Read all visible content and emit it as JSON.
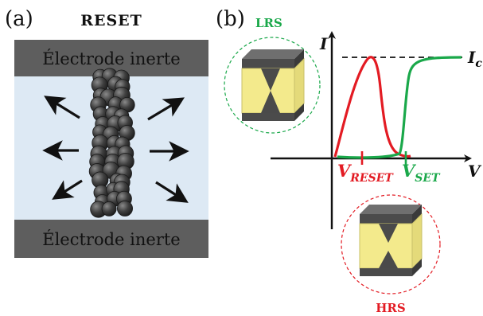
{
  "panel_a": {
    "label": "(a)",
    "title": "RESET",
    "top_electrode": "Électrode inerte",
    "bottom_electrode": "Électrode inerte",
    "colors": {
      "electrode": "#5e5e5e",
      "medium": "#dde9f4",
      "particle": "#3a3a3a"
    }
  },
  "panel_b": {
    "label": "(b)",
    "axis_i": "I",
    "axis_v": "V",
    "compliance_label": "I",
    "compliance_sub": "c",
    "v_reset_main": "V",
    "v_reset_sub": "RESET",
    "v_set_main": "V",
    "v_set_sub": "SET",
    "lrs_label": "LRS",
    "hrs_label": "HRS",
    "colors": {
      "reset_curve": "#e31b23",
      "set_curve": "#1aa84a",
      "cell": "#f3ea8c"
    }
  }
}
